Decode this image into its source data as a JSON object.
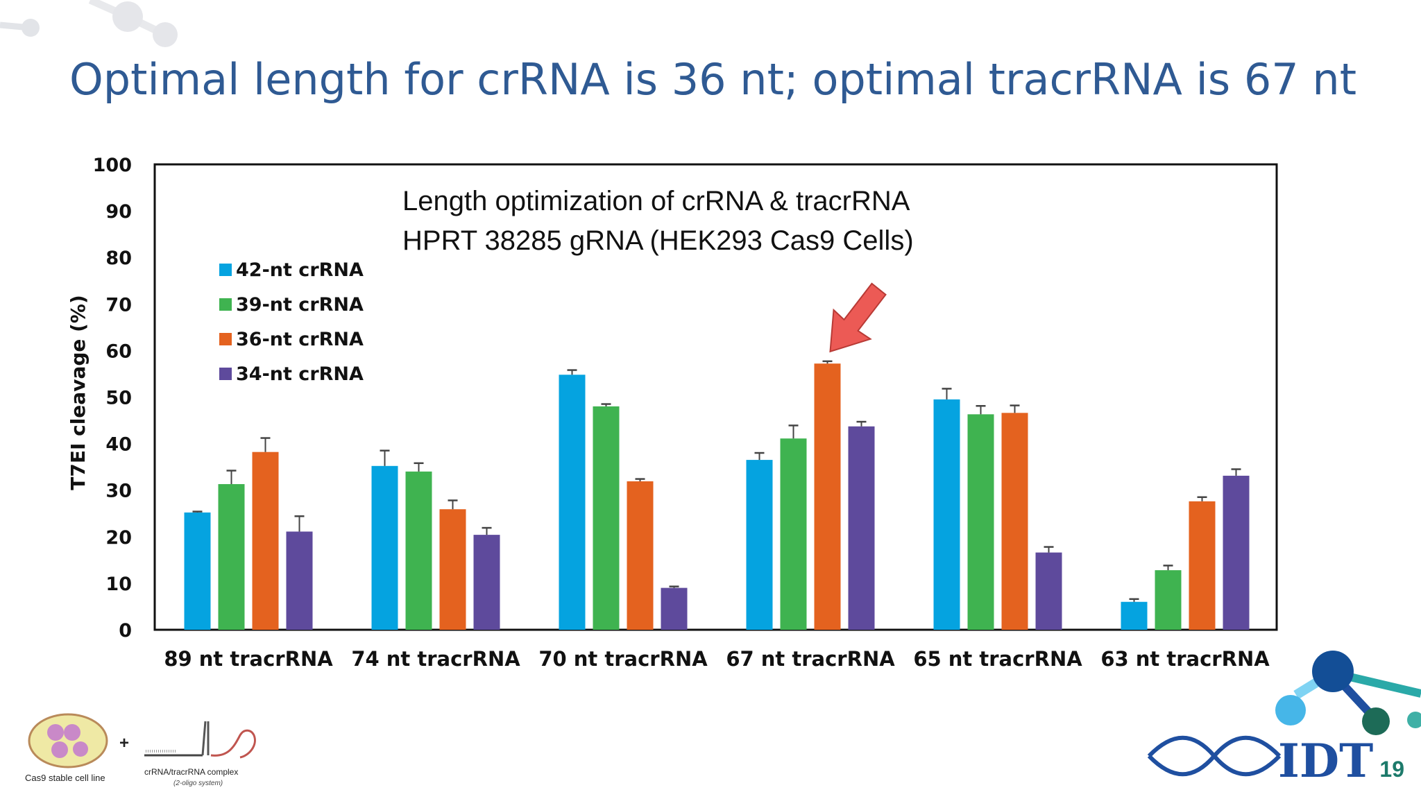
{
  "slide": {
    "title": "Optimal length for crRNA is 36 nt; optimal tracrRNA is 67 nt",
    "page_number": "19",
    "logo_text": "IDT",
    "cell_line_caption": "Cas9 stable cell line",
    "complex_caption": "crRNA/tracrRNA complex",
    "complex_sub": "(2-oligo system)",
    "plus": "+"
  },
  "colors": {
    "title": "#2f5a93",
    "series": [
      "#05a3e0",
      "#3fb350",
      "#e4621f",
      "#5e4a9c"
    ],
    "arrow": "#ec5a55",
    "logo": "#1f4fa0"
  },
  "chart_data": {
    "type": "bar",
    "title": "Length optimization of crRNA & tracrRNA",
    "subtitle": "HPRT 38285  gRNA (HEK293 Cas9  Cells)",
    "xlabel": "",
    "ylabel": "T7EI cleavage (%)",
    "ylim": [
      0,
      100
    ],
    "yticks": [
      0,
      10,
      20,
      30,
      40,
      50,
      60,
      70,
      80,
      90,
      100
    ],
    "grid": false,
    "legend_position": "top-left",
    "categories": [
      "89 nt tracrRNA",
      "74 nt tracrRNA",
      "70 nt tracrRNA",
      "67 nt tracrRNA",
      "65 nt tracrRNA",
      "63 nt tracrRNA"
    ],
    "series": [
      {
        "name": "42-nt crRNA",
        "values": [
          25.2,
          35.2,
          54.8,
          36.5,
          49.5,
          6.0
        ],
        "errors": [
          0.2,
          3.3,
          1.0,
          1.5,
          2.3,
          0.6
        ]
      },
      {
        "name": "39-nt crRNA",
        "values": [
          31.3,
          34.0,
          48.0,
          41.1,
          46.3,
          12.8
        ],
        "errors": [
          2.9,
          1.8,
          0.5,
          2.8,
          1.8,
          1.0
        ]
      },
      {
        "name": "36-nt crRNA",
        "values": [
          38.2,
          25.9,
          31.9,
          57.2,
          46.6,
          27.6
        ],
        "errors": [
          3.0,
          1.9,
          0.5,
          0.5,
          1.6,
          0.9
        ]
      },
      {
        "name": "34-nt crRNA",
        "values": [
          21.1,
          20.4,
          9.0,
          43.7,
          16.6,
          33.1
        ],
        "errors": [
          3.3,
          1.5,
          0.3,
          1.0,
          1.2,
          1.4
        ]
      }
    ],
    "annotation": {
      "type": "arrow",
      "category": "67 nt tracrRNA",
      "series": "36-nt crRNA"
    }
  }
}
